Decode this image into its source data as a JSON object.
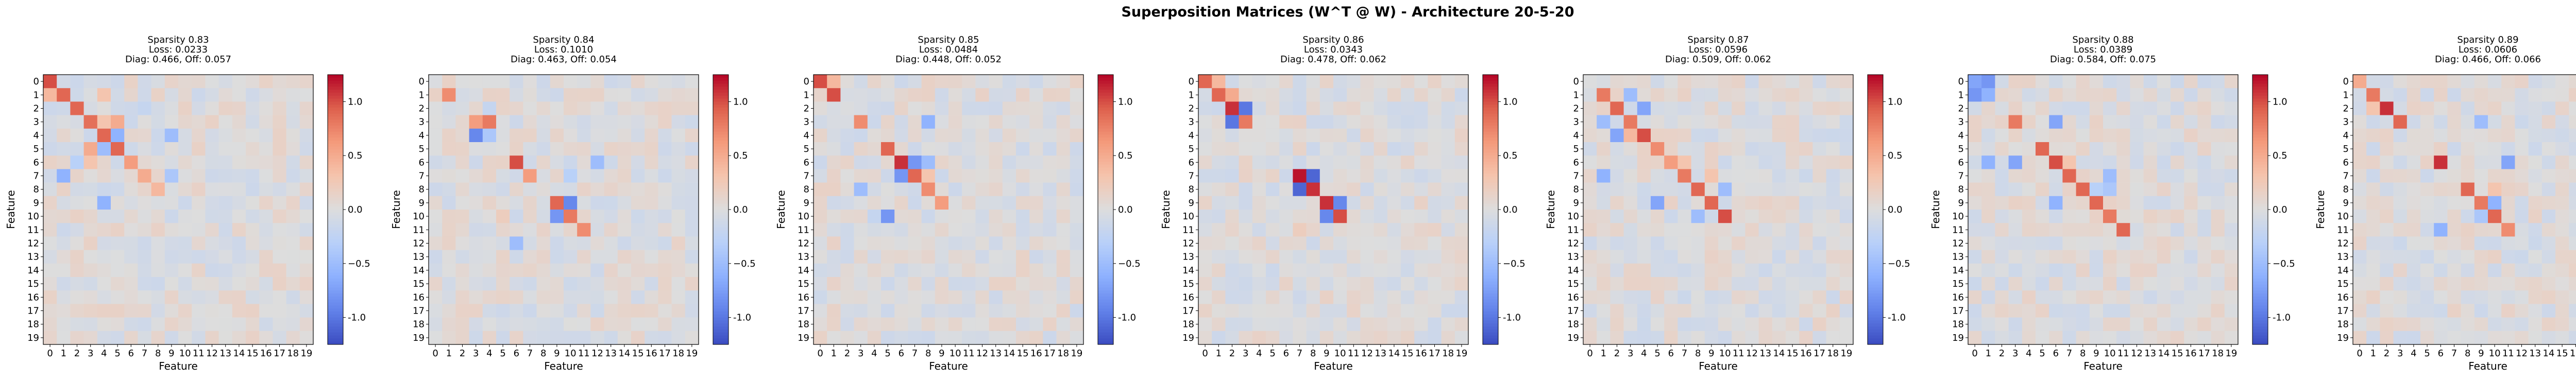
{
  "figure": {
    "title": "Superposition Matrices (W^T @ W) - Architecture 20-5-20"
  },
  "chart_data": {
    "type": "heatmap",
    "n_features": 20,
    "xlabel": "Feature",
    "ylabel": "Feature",
    "xticks": [
      "0",
      "1",
      "2",
      "3",
      "4",
      "5",
      "6",
      "7",
      "8",
      "9",
      "10",
      "11",
      "12",
      "13",
      "14",
      "15",
      "16",
      "17",
      "18",
      "19"
    ],
    "yticks": [
      "0",
      "1",
      "2",
      "3",
      "4",
      "5",
      "6",
      "7",
      "8",
      "9",
      "10",
      "11",
      "12",
      "13",
      "14",
      "15",
      "16",
      "17",
      "18",
      "19"
    ],
    "colormap": "coolwarm",
    "colorbar_ticks": [
      "-1.0",
      "−0.5",
      "0.0",
      "0.5",
      "1.0"
    ],
    "colorbar_tick_values": [
      -1.0,
      -0.5,
      0.0,
      0.5,
      1.0
    ],
    "vmin": -1.25,
    "vmax": 1.25,
    "panels": [
      {
        "title_lines": [
          "Sparsity 0.83",
          "Loss: 0.0233",
          "Diag: 0.466, Off: 0.057"
        ],
        "strong_cells": [
          [
            0,
            0,
            1.0
          ],
          [
            1,
            1,
            0.9
          ],
          [
            2,
            2,
            0.9
          ],
          [
            3,
            3,
            0.85
          ],
          [
            4,
            4,
            0.9
          ],
          [
            5,
            5,
            0.9
          ],
          [
            6,
            6,
            0.6
          ],
          [
            7,
            7,
            0.5
          ],
          [
            8,
            8,
            0.4
          ],
          [
            1,
            0,
            0.4
          ],
          [
            3,
            5,
            0.5
          ],
          [
            5,
            3,
            0.5
          ],
          [
            4,
            5,
            -0.6
          ],
          [
            5,
            4,
            -0.5
          ],
          [
            3,
            4,
            0.3
          ],
          [
            9,
            4,
            -0.6
          ],
          [
            7,
            1,
            -0.6
          ],
          [
            4,
            9,
            -0.5
          ],
          [
            6,
            2,
            -0.3
          ],
          [
            7,
            9,
            -0.4
          ],
          [
            2,
            7,
            -0.2
          ],
          [
            1,
            4,
            0.3
          ],
          [
            6,
            3,
            0.3
          ]
        ]
      },
      {
        "title_lines": [
          "Sparsity 0.84",
          "Loss: 0.1010",
          "Diag: 0.463, Off: 0.054"
        ],
        "strong_cells": [
          [
            1,
            1,
            0.7
          ],
          [
            3,
            3,
            0.6
          ],
          [
            3,
            4,
            0.8
          ],
          [
            4,
            3,
            -0.9
          ],
          [
            4,
            4,
            -0.4
          ],
          [
            6,
            6,
            1.0
          ],
          [
            7,
            7,
            0.6
          ],
          [
            6,
            12,
            -0.5
          ],
          [
            9,
            9,
            0.9
          ],
          [
            9,
            10,
            -0.9
          ],
          [
            10,
            9,
            -0.8
          ],
          [
            10,
            10,
            0.8
          ],
          [
            11,
            11,
            0.7
          ],
          [
            12,
            6,
            -0.5
          ],
          [
            7,
            10,
            -0.3
          ],
          [
            10,
            5,
            0.2
          ],
          [
            2,
            4,
            -0.2
          ]
        ]
      },
      {
        "title_lines": [
          "Sparsity 0.85",
          "Loss: 0.0484",
          "Diag: 0.448, Off: 0.052"
        ],
        "strong_cells": [
          [
            0,
            0,
            1.0
          ],
          [
            1,
            1,
            1.0
          ],
          [
            0,
            1,
            0.4
          ],
          [
            3,
            3,
            0.7
          ],
          [
            3,
            8,
            -0.6
          ],
          [
            5,
            5,
            0.9
          ],
          [
            6,
            6,
            1.1
          ],
          [
            6,
            7,
            -0.8
          ],
          [
            7,
            6,
            -0.8
          ],
          [
            7,
            7,
            0.9
          ],
          [
            8,
            8,
            0.7
          ],
          [
            9,
            9,
            0.6
          ],
          [
            8,
            3,
            -0.5
          ],
          [
            10,
            5,
            -0.8
          ],
          [
            6,
            8,
            -0.5
          ],
          [
            7,
            8,
            0.3
          ],
          [
            10,
            4,
            -0.2
          ]
        ]
      },
      {
        "title_lines": [
          "Sparsity 0.86",
          "Loss: 0.0343",
          "Diag: 0.478, Off: 0.062"
        ],
        "strong_cells": [
          [
            0,
            0,
            0.9
          ],
          [
            1,
            1,
            0.9
          ],
          [
            1,
            2,
            0.5
          ],
          [
            2,
            2,
            1.1
          ],
          [
            2,
            3,
            -1.0
          ],
          [
            3,
            2,
            -1.0
          ],
          [
            3,
            3,
            0.8
          ],
          [
            7,
            7,
            1.2
          ],
          [
            7,
            8,
            -1.1
          ],
          [
            8,
            7,
            -1.1
          ],
          [
            8,
            8,
            1.1
          ],
          [
            9,
            9,
            1.1
          ],
          [
            9,
            10,
            -0.9
          ],
          [
            10,
            9,
            -0.9
          ],
          [
            10,
            10,
            1.0
          ],
          [
            0,
            1,
            0.4
          ],
          [
            11,
            7,
            0.2
          ]
        ]
      },
      {
        "title_lines": [
          "Sparsity 0.87",
          "Loss: 0.0596",
          "Diag: 0.509, Off: 0.062"
        ],
        "strong_cells": [
          [
            1,
            1,
            0.8
          ],
          [
            2,
            2,
            0.9
          ],
          [
            3,
            3,
            0.8
          ],
          [
            4,
            4,
            1.0
          ],
          [
            5,
            5,
            0.7
          ],
          [
            6,
            6,
            0.6
          ],
          [
            7,
            7,
            0.8
          ],
          [
            8,
            8,
            0.9
          ],
          [
            9,
            9,
            0.9
          ],
          [
            10,
            10,
            1.0
          ],
          [
            2,
            4,
            -0.7
          ],
          [
            4,
            2,
            -0.7
          ],
          [
            3,
            1,
            -0.5
          ],
          [
            1,
            3,
            -0.5
          ],
          [
            7,
            1,
            -0.6
          ],
          [
            9,
            5,
            -0.7
          ],
          [
            8,
            10,
            -0.5
          ],
          [
            10,
            8,
            -0.5
          ],
          [
            4,
            3,
            0.4
          ],
          [
            7,
            9,
            0.3
          ],
          [
            6,
            7,
            0.3
          ]
        ]
      },
      {
        "title_lines": [
          "Sparsity 0.88",
          "Loss: 0.0389",
          "Diag: 0.584, Off: 0.075"
        ],
        "strong_cells": [
          [
            0,
            0,
            -0.7
          ],
          [
            0,
            1,
            -0.8
          ],
          [
            1,
            0,
            -0.8
          ],
          [
            1,
            1,
            -0.6
          ],
          [
            3,
            3,
            0.8
          ],
          [
            3,
            6,
            -0.7
          ],
          [
            6,
            3,
            -0.7
          ],
          [
            5,
            5,
            0.9
          ],
          [
            6,
            6,
            1.0
          ],
          [
            7,
            7,
            0.9
          ],
          [
            8,
            8,
            0.9
          ],
          [
            9,
            9,
            0.9
          ],
          [
            10,
            10,
            0.8
          ],
          [
            11,
            11,
            0.9
          ],
          [
            6,
            1,
            -0.6
          ],
          [
            7,
            10,
            -0.5
          ],
          [
            9,
            6,
            -0.6
          ],
          [
            8,
            10,
            -0.4
          ],
          [
            6,
            7,
            0.3
          ],
          [
            8,
            9,
            -0.3
          ]
        ]
      },
      {
        "title_lines": [
          "Sparsity 0.89",
          "Loss: 0.0606",
          "Diag: 0.466, Off: 0.066"
        ],
        "strong_cells": [
          [
            0,
            0,
            0.5
          ],
          [
            1,
            1,
            0.8
          ],
          [
            2,
            2,
            1.1
          ],
          [
            3,
            3,
            0.9
          ],
          [
            3,
            9,
            -0.5
          ],
          [
            6,
            6,
            1.1
          ],
          [
            6,
            11,
            -0.7
          ],
          [
            8,
            8,
            0.9
          ],
          [
            9,
            9,
            0.8
          ],
          [
            9,
            10,
            -0.6
          ],
          [
            10,
            10,
            0.9
          ],
          [
            11,
            11,
            0.7
          ],
          [
            11,
            6,
            -0.6
          ],
          [
            8,
            10,
            0.3
          ],
          [
            2,
            1,
            0.3
          ],
          [
            10,
            9,
            -0.4
          ]
        ]
      }
    ]
  }
}
